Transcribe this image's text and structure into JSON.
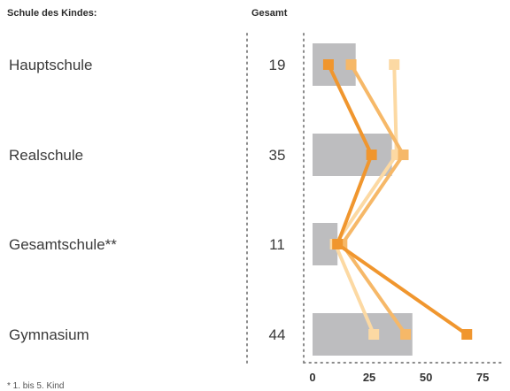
{
  "headers": {
    "left": "Schule des Kindes:",
    "right": "Gesamt"
  },
  "footnote": "* 1. bis 5. Kind",
  "colors": {
    "bar": "#bdbdbf",
    "line1": "#f0962e",
    "line2": "#f6b868",
    "line3": "#fcd9a3",
    "dots": "#8a8a8a"
  },
  "chart_data": {
    "type": "bar",
    "categories": [
      "Hauptschule",
      "Realschule",
      "Gesamtschule**",
      "Gymnasium"
    ],
    "totals": [
      19,
      35,
      11,
      44
    ],
    "bar_values": [
      19,
      35,
      11,
      44
    ],
    "series": [
      {
        "values": [
          7,
          26,
          11,
          68
        ]
      },
      {
        "values": [
          17,
          40,
          13,
          41
        ]
      },
      {
        "values": [
          36,
          37,
          10,
          27
        ]
      }
    ],
    "xticks": [
      0,
      25,
      50,
      75
    ],
    "xlim": [
      0,
      80
    ]
  }
}
